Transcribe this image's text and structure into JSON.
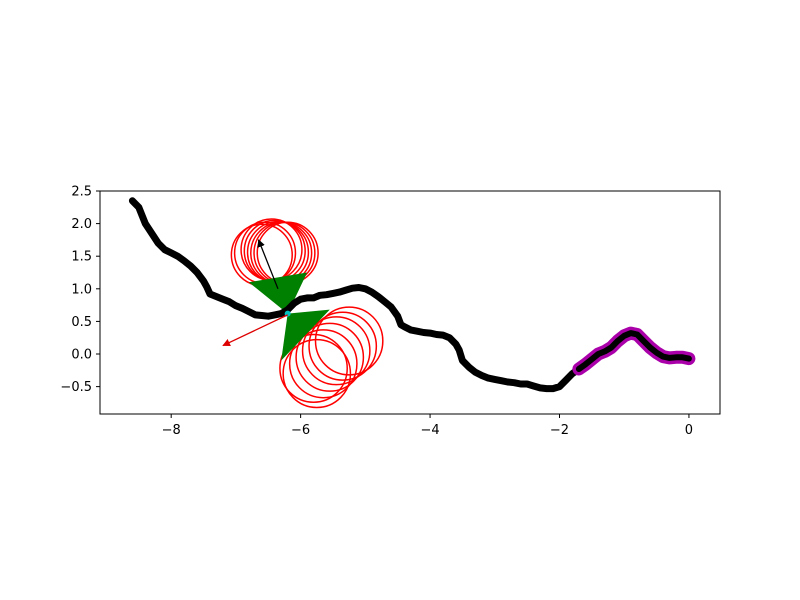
{
  "chart_data": {
    "type": "line",
    "title": "",
    "xlabel": "",
    "ylabel": "",
    "xlim": [
      -9.1,
      0.48
    ],
    "ylim": [
      -0.92,
      2.5
    ],
    "x_ticks": [
      -8,
      -6,
      -4,
      -2,
      0
    ],
    "x_tick_labels": [
      "−8",
      "−6",
      "−4",
      "−2",
      "0"
    ],
    "y_ticks": [
      2.5,
      2.0,
      1.5,
      1.0,
      0.5,
      0.0,
      -0.5
    ],
    "y_tick_labels": [
      "2.5",
      "2.0",
      "1.5",
      "1.0",
      "0.5",
      "0.0",
      "−0.5"
    ],
    "grid": false,
    "colors": {
      "trajectory": "#000000",
      "recent_segment": "#aa00aa",
      "circles": "#ff0000",
      "wedge": "#008000",
      "agent": "#00bfbf",
      "black_arrow": "#000000",
      "red_arrow": "#dd0000"
    },
    "series": [
      {
        "role": "trajectory",
        "x": [
          -8.6,
          -8.5,
          -8.4,
          -8.3,
          -8.2,
          -8.1,
          -8.0,
          -7.9,
          -7.8,
          -7.7,
          -7.6,
          -7.5,
          -7.45,
          -7.4,
          -7.3,
          -7.2,
          -7.1,
          -7.0,
          -6.9,
          -6.8,
          -6.7,
          -6.6,
          -6.5,
          -6.4,
          -6.3,
          -6.2,
          -6.1,
          -6.0,
          -5.9,
          -5.8,
          -5.7,
          -5.6,
          -5.5,
          -5.4,
          -5.3,
          -5.2,
          -5.1,
          -5.0,
          -4.9,
          -4.8,
          -4.7,
          -4.6,
          -4.5,
          -4.45,
          -4.4,
          -4.3,
          -4.2,
          -4.1,
          -4.0,
          -3.9,
          -3.8,
          -3.7,
          -3.6,
          -3.55,
          -3.5,
          -3.4,
          -3.3,
          -3.2,
          -3.1,
          -3.0,
          -2.9,
          -2.8,
          -2.7,
          -2.6,
          -2.5,
          -2.4,
          -2.3,
          -2.2,
          -2.1,
          -2.0,
          -1.9,
          -1.8,
          -1.7,
          -1.6,
          -1.5,
          -1.4,
          -1.3,
          -1.2,
          -1.1,
          -1.0,
          -0.9,
          -0.8,
          -0.7,
          -0.6,
          -0.5,
          -0.4,
          -0.3,
          -0.2,
          -0.1,
          0.0
        ],
        "y": [
          2.35,
          2.25,
          2.0,
          1.85,
          1.7,
          1.6,
          1.55,
          1.5,
          1.43,
          1.35,
          1.25,
          1.12,
          1.03,
          0.92,
          0.88,
          0.84,
          0.8,
          0.74,
          0.7,
          0.65,
          0.6,
          0.59,
          0.58,
          0.6,
          0.62,
          0.68,
          0.78,
          0.84,
          0.86,
          0.86,
          0.9,
          0.91,
          0.93,
          0.95,
          0.98,
          1.01,
          1.02,
          1.0,
          0.95,
          0.88,
          0.8,
          0.72,
          0.58,
          0.45,
          0.42,
          0.37,
          0.35,
          0.33,
          0.32,
          0.3,
          0.29,
          0.25,
          0.15,
          0.06,
          -0.1,
          -0.2,
          -0.28,
          -0.33,
          -0.37,
          -0.39,
          -0.41,
          -0.43,
          -0.44,
          -0.46,
          -0.46,
          -0.49,
          -0.52,
          -0.53,
          -0.53,
          -0.5,
          -0.4,
          -0.3,
          -0.23,
          -0.16,
          -0.08,
          0.0,
          0.04,
          0.1,
          0.2,
          0.28,
          0.32,
          0.3,
          0.2,
          0.1,
          0.02,
          -0.04,
          -0.06,
          -0.05,
          -0.05,
          -0.07
        ]
      },
      {
        "role": "recent_segment",
        "x": [
          -1.7,
          -1.6,
          -1.5,
          -1.4,
          -1.3,
          -1.2,
          -1.1,
          -1.0,
          -0.9,
          -0.8,
          -0.7,
          -0.6,
          -0.5,
          -0.4,
          -0.3,
          -0.2,
          -0.1,
          0.0
        ],
        "y": [
          -0.23,
          -0.16,
          -0.08,
          0.0,
          0.04,
          0.1,
          0.2,
          0.28,
          0.32,
          0.3,
          0.2,
          0.1,
          0.02,
          -0.04,
          -0.06,
          -0.05,
          -0.05,
          -0.07
        ]
      }
    ],
    "circles_upper": {
      "radius": 0.47,
      "centers": [
        [
          -6.55,
          1.55
        ],
        [
          -6.45,
          1.6
        ],
        [
          -6.4,
          1.58
        ],
        [
          -6.35,
          1.56
        ],
        [
          -6.3,
          1.55
        ],
        [
          -6.25,
          1.55
        ],
        [
          -6.2,
          1.55
        ],
        [
          -6.6,
          1.52
        ]
      ]
    },
    "circles_lower": {
      "radius": 0.52,
      "centers": [
        [
          -5.8,
          -0.22
        ],
        [
          -5.65,
          -0.15
        ],
        [
          -5.55,
          -0.05
        ],
        [
          -5.45,
          0.05
        ],
        [
          -5.35,
          0.12
        ],
        [
          -5.25,
          0.2
        ],
        [
          -5.75,
          -0.3
        ]
      ]
    },
    "wedges": [
      {
        "points": [
          [
            -6.2,
            0.62
          ],
          [
            -6.8,
            1.1
          ],
          [
            -5.9,
            1.25
          ]
        ]
      },
      {
        "points": [
          [
            -6.2,
            0.62
          ],
          [
            -5.55,
            0.68
          ],
          [
            -6.3,
            -0.1
          ]
        ]
      }
    ],
    "agent": {
      "x": -6.2,
      "y": 0.62
    },
    "arrows": [
      {
        "role": "black_arrow",
        "from": [
          -6.35,
          1.0
        ],
        "to": [
          -6.65,
          1.75
        ]
      },
      {
        "role": "red_arrow",
        "from": [
          -6.2,
          0.6
        ],
        "to": [
          -7.2,
          0.13
        ]
      }
    ]
  }
}
